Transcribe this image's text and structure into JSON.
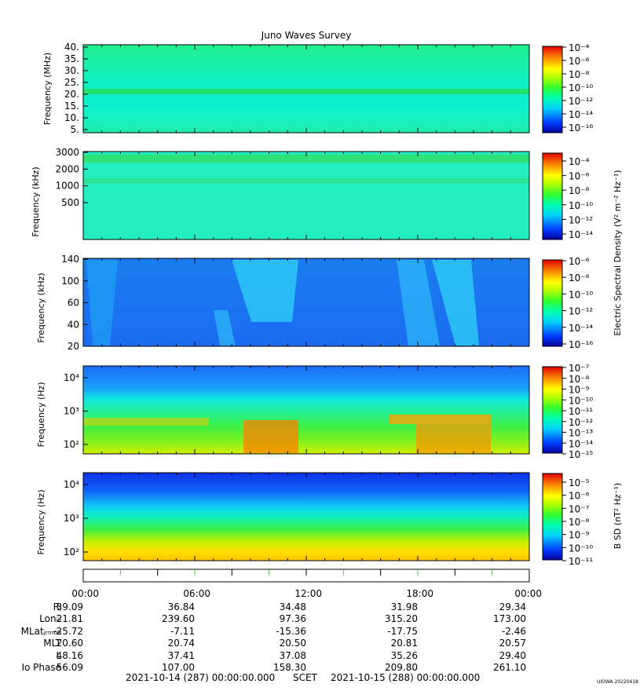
{
  "title": "Juno Waves Survey",
  "cbar_shared_label": "Electric Spectral Density (V² m⁻² Hz⁻¹)",
  "chart_data": [
    {
      "type": "heatmap",
      "name": "panel-1",
      "ylabel": "Frequency (MHz)",
      "yticks": [
        "40.",
        "35.",
        "30.",
        "25.",
        "20.",
        "15.",
        "10.",
        "5."
      ],
      "ylim": [
        3,
        41
      ],
      "cbar_ticks": [
        "10⁻⁴",
        "10⁻⁶",
        "10⁻⁸",
        "10⁻¹⁰",
        "10⁻¹²",
        "10⁻¹⁴",
        "10⁻¹⁶"
      ],
      "cbar_label": ""
    },
    {
      "type": "heatmap",
      "name": "panel-2",
      "ylabel": "Frequency (kHz)",
      "yticks": [
        "3000",
        "2000",
        "1000",
        "500"
      ],
      "cbar_ticks": [
        "10⁻⁴",
        "10⁻⁶",
        "10⁻⁸",
        "10⁻¹⁰",
        "10⁻¹²",
        "10⁻¹⁴"
      ],
      "cbar_label": ""
    },
    {
      "type": "heatmap",
      "name": "panel-3",
      "ylabel": "Frequency (kHz)",
      "yticks": [
        "140",
        "100",
        "60",
        "40",
        "20"
      ],
      "cbar_ticks": [
        "10⁻⁶",
        "10⁻⁸",
        "10⁻¹⁰",
        "10⁻¹²",
        "10⁻¹⁴",
        "10⁻¹⁶"
      ],
      "cbar_label": ""
    },
    {
      "type": "heatmap",
      "name": "panel-4",
      "ylabel": "Frequency (Hz)",
      "yticks": [
        "10⁴",
        "10³",
        "10²"
      ],
      "cbar_ticks": [
        "10⁻⁷",
        "10⁻⁸",
        "10⁻⁹",
        "10⁻¹⁰",
        "10⁻¹¹",
        "10⁻¹²",
        "10⁻¹³",
        "10⁻¹⁴",
        "10⁻¹⁵"
      ],
      "cbar_label": ""
    },
    {
      "type": "heatmap",
      "name": "panel-5",
      "ylabel": "Frequency (Hz)",
      "yticks": [
        "10⁴",
        "10³",
        "10²"
      ],
      "cbar_ticks": [
        "10⁻⁵",
        "10⁻⁶",
        "10⁻⁷",
        "10⁻⁸",
        "10⁻⁹",
        "10⁻¹⁰",
        "10⁻¹¹"
      ],
      "cbar_label": "B SD (nT² Hz⁻¹)"
    }
  ],
  "time_axis": {
    "labels": [
      "00:00",
      "06:00",
      "12:00",
      "18:00",
      "00:00"
    ]
  },
  "ephemeris": [
    {
      "label": "Rⱼ",
      "values": [
        "39.09",
        "36.84",
        "34.48",
        "31.98",
        "29.34"
      ]
    },
    {
      "label": "Lonᵢᵢᵢ",
      "values": [
        "21.81",
        "239.60",
        "97.36",
        "315.20",
        "173.00"
      ]
    },
    {
      "label": "MLatⱼᵣₘ₀₉",
      "values": [
        "-25.72",
        "-7.11",
        "-15.36",
        "-17.75",
        "-2.46"
      ]
    },
    {
      "label": "MLT",
      "values": [
        "20.60",
        "20.74",
        "20.50",
        "20.81",
        "20.57"
      ]
    },
    {
      "label": "L",
      "values": [
        "48.16",
        "37.41",
        "37.08",
        "35.26",
        "29.40"
      ]
    },
    {
      "label": "Io Phase",
      "values": [
        "56.09",
        "107.00",
        "158.30",
        "209.80",
        "261.10"
      ]
    }
  ],
  "footer": {
    "start": "2021-10-14 (287) 00:00:00.000",
    "scet": "SCET",
    "end": "2021-10-15 (288) 00:00:00.000"
  },
  "credit": "UIOWA 20220418"
}
